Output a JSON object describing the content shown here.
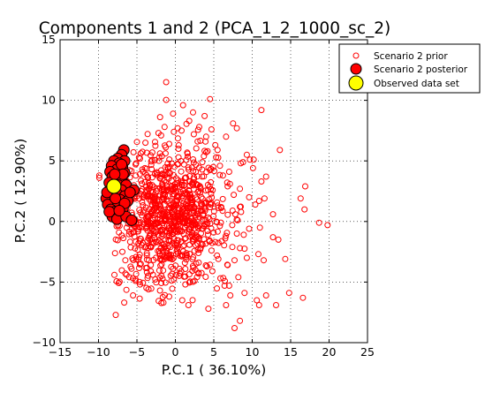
{
  "chart_data": {
    "type": "scatter",
    "title": "Components 1 and 2 (PCA_1_2_1000_sc_2)",
    "xlabel": "P.C.1 (   36.10%)",
    "ylabel": "P.C.2 (   12.90%)",
    "xlim": [
      -15,
      25
    ],
    "ylim": [
      -10,
      15
    ],
    "xticks": [
      -15,
      -10,
      -5,
      0,
      5,
      10,
      15,
      20,
      25
    ],
    "yticks": [
      -10,
      -5,
      0,
      5,
      10,
      15
    ],
    "xtick_labels": [
      "−15",
      "−10",
      "−5",
      "0",
      "5",
      "10",
      "15",
      "20",
      "25"
    ],
    "ytick_labels": [
      "−10",
      "−5",
      "0",
      "5",
      "10",
      "15"
    ],
    "grid": true,
    "grid_style": "dotted",
    "legend_position": "top-right",
    "series": [
      {
        "name": "Scenario 2 prior",
        "marker": "hollow-circle",
        "color": "#ff0000",
        "note_count": 1000,
        "points": [
          [
            -1.2,
            11.5
          ],
          [
            1.0,
            9.6
          ],
          [
            2.3,
            9.0
          ],
          [
            4.5,
            10.1
          ],
          [
            11.2,
            9.2
          ],
          [
            -0.3,
            8.9
          ],
          [
            3.8,
            8.7
          ],
          [
            4.7,
            7.6
          ],
          [
            7.5,
            8.1
          ],
          [
            8.0,
            7.7
          ],
          [
            3.1,
            7.8
          ],
          [
            0.8,
            7.5
          ],
          [
            -1.4,
            7.8
          ],
          [
            -2.2,
            7.3
          ],
          [
            6.6,
            7.0
          ],
          [
            5.2,
            6.3
          ],
          [
            -0.8,
            6.4
          ],
          [
            -3.9,
            6.5
          ],
          [
            9.3,
            5.5
          ],
          [
            13.6,
            5.9
          ],
          [
            8.5,
            4.8
          ],
          [
            10.1,
            4.4
          ],
          [
            7.0,
            4.1
          ],
          [
            6.2,
            3.8
          ],
          [
            10.2,
            5.1
          ],
          [
            11.8,
            3.7
          ],
          [
            11.2,
            3.3
          ],
          [
            9.6,
            2.0
          ],
          [
            8.4,
            2.7
          ],
          [
            10.9,
            1.7
          ],
          [
            10.4,
            1.4
          ],
          [
            11.6,
            1.9
          ],
          [
            16.9,
            2.9
          ],
          [
            16.3,
            1.9
          ],
          [
            16.8,
            1.0
          ],
          [
            18.7,
            -0.1
          ],
          [
            19.8,
            -0.3
          ],
          [
            12.7,
            0.6
          ],
          [
            9.6,
            -0.6
          ],
          [
            11.0,
            -0.5
          ],
          [
            8.9,
            -1.1
          ],
          [
            12.7,
            -1.3
          ],
          [
            13.4,
            -1.5
          ],
          [
            8.4,
            -2.2
          ],
          [
            10.8,
            -2.7
          ],
          [
            11.5,
            -3.2
          ],
          [
            14.3,
            -3.1
          ],
          [
            9.3,
            -3.0
          ],
          [
            7.7,
            -3.2
          ],
          [
            6.8,
            -3.6
          ],
          [
            8.2,
            -4.6
          ],
          [
            7.0,
            -5.3
          ],
          [
            6.4,
            -5.3
          ],
          [
            9.0,
            -5.9
          ],
          [
            11.8,
            -6.1
          ],
          [
            14.8,
            -5.9
          ],
          [
            10.6,
            -6.5
          ],
          [
            13.1,
            -6.9
          ],
          [
            10.9,
            -6.9
          ],
          [
            16.6,
            -6.3
          ],
          [
            8.4,
            -8.2
          ],
          [
            7.7,
            -8.8
          ],
          [
            6.6,
            -6.9
          ],
          [
            4.3,
            -7.2
          ],
          [
            1.7,
            -6.9
          ],
          [
            0.9,
            -6.5
          ],
          [
            -0.8,
            -6.2
          ],
          [
            -2.0,
            -5.7
          ],
          [
            -3.5,
            -5.6
          ],
          [
            -4.6,
            -5.2
          ],
          [
            -5.2,
            -4.9
          ],
          [
            -5.5,
            -6.1
          ],
          [
            -6.0,
            -4.6
          ],
          [
            -6.5,
            -4.3
          ],
          [
            -6.5,
            -3.2
          ],
          [
            -6.9,
            -2.5
          ],
          [
            -9.9,
            3.8
          ],
          [
            -9.9,
            3.6
          ],
          [
            -7.1,
            3.4
          ],
          [
            -5.1,
            4.8
          ],
          [
            -4.6,
            5.2
          ],
          [
            -3.0,
            5.7
          ],
          [
            -2.1,
            5.3
          ],
          [
            0.4,
            6.0
          ],
          [
            1.6,
            5.6
          ],
          [
            2.9,
            6.6
          ],
          [
            4.2,
            5.8
          ],
          [
            5.3,
            5.3
          ],
          [
            3.5,
            4.9
          ],
          [
            5.8,
            4.6
          ],
          [
            7.1,
            3.1
          ],
          [
            6.8,
            2.9
          ],
          [
            7.6,
            2.2
          ],
          [
            8.4,
            1.2
          ],
          [
            7.8,
            0.6
          ],
          [
            8.1,
            0.1
          ],
          [
            7.4,
            -0.3
          ],
          [
            8.0,
            -1.0
          ],
          [
            6.5,
            -1.4
          ],
          [
            5.2,
            -1.7
          ],
          [
            4.7,
            -2.4
          ],
          [
            5.6,
            -3.1
          ],
          [
            4.1,
            -3.7
          ],
          [
            3.0,
            -4.3
          ],
          [
            2.5,
            -4.9
          ],
          [
            1.3,
            -5.2
          ],
          [
            -0.2,
            -4.8
          ],
          [
            -1.8,
            -4.5
          ],
          [
            -3.2,
            -4.1
          ],
          [
            -4.5,
            -3.5
          ],
          [
            -5.7,
            -3.9
          ],
          [
            -4.2,
            4.1
          ],
          [
            -6.4,
            3.9
          ],
          [
            5.5,
            5.9
          ],
          [
            2.4,
            7.2
          ],
          [
            4.0,
            7.0
          ],
          [
            -0.2,
            7.4
          ],
          [
            1.8,
            8.3
          ],
          [
            8.8,
            4.9
          ],
          [
            9.7,
            5.1
          ]
        ]
      },
      {
        "name": "Scenario 2 posterior",
        "marker": "filled-circle",
        "color": "#ff0000",
        "edge_color": "#000000",
        "points": [
          [
            -6.7,
            5.9
          ],
          [
            -7.0,
            5.5
          ],
          [
            -7.5,
            5.2
          ],
          [
            -8.0,
            5.0
          ],
          [
            -6.6,
            5.0
          ],
          [
            -7.3,
            4.8
          ],
          [
            -8.3,
            4.6
          ],
          [
            -6.9,
            4.5
          ],
          [
            -7.6,
            4.3
          ],
          [
            -8.5,
            4.1
          ],
          [
            -6.6,
            4.0
          ],
          [
            -7.2,
            3.8
          ],
          [
            -8.2,
            3.7
          ],
          [
            -7.7,
            3.5
          ],
          [
            -6.9,
            3.3
          ],
          [
            -8.6,
            3.2
          ],
          [
            -7.4,
            3.0
          ],
          [
            -6.4,
            3.0
          ],
          [
            -8.0,
            2.8
          ],
          [
            -7.0,
            2.6
          ],
          [
            -8.7,
            2.5
          ],
          [
            -5.4,
            2.6
          ],
          [
            -7.6,
            2.3
          ],
          [
            -6.6,
            2.1
          ],
          [
            -8.3,
            2.0
          ],
          [
            -9.0,
            1.9
          ],
          [
            -7.2,
            1.8
          ],
          [
            -6.2,
            1.7
          ],
          [
            -8.0,
            1.6
          ],
          [
            -8.8,
            1.4
          ],
          [
            -7.5,
            1.3
          ],
          [
            -6.8,
            1.1
          ],
          [
            -8.4,
            1.0
          ],
          [
            -7.9,
            0.8
          ],
          [
            -7.1,
            0.6
          ],
          [
            -8.2,
            0.4
          ],
          [
            -7.6,
            0.2
          ],
          [
            -6.4,
            0.4
          ],
          [
            -5.7,
            0.1
          ],
          [
            -7.0,
            4.7
          ],
          [
            -6.8,
            3.9
          ],
          [
            -7.9,
            3.9
          ],
          [
            -8.9,
            2.4
          ],
          [
            -5.9,
            2.4
          ],
          [
            -7.8,
            1.9
          ],
          [
            -6.6,
            1.5
          ],
          [
            -8.6,
            0.8
          ],
          [
            -7.3,
            0.9
          ]
        ]
      },
      {
        "name": "Observed data set",
        "marker": "filled-circle",
        "color": "#ffff00",
        "edge_color": "#000000",
        "points": [
          [
            -8.0,
            2.9
          ]
        ]
      }
    ]
  }
}
